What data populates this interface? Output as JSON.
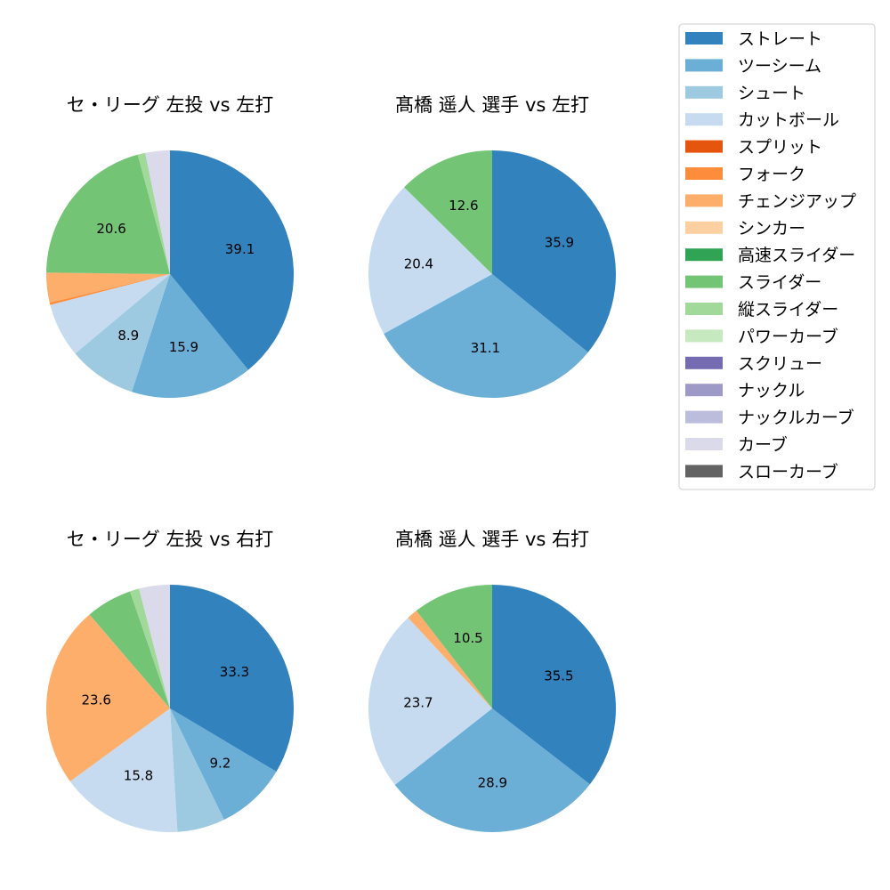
{
  "chart_data": {
    "legend": {
      "placement": "right",
      "items": [
        {
          "name": "ストレート",
          "color": "#3182bd"
        },
        {
          "name": "ツーシーム",
          "color": "#6baed6"
        },
        {
          "name": "シュート",
          "color": "#9ecae1"
        },
        {
          "name": "カットボール",
          "color": "#c6dbef"
        },
        {
          "name": "スプリット",
          "color": "#e6550d"
        },
        {
          "name": "フォーク",
          "color": "#fd8d3c"
        },
        {
          "name": "チェンジアップ",
          "color": "#fdae6b"
        },
        {
          "name": "シンカー",
          "color": "#fdd0a2"
        },
        {
          "name": "高速スライダー",
          "color": "#31a354"
        },
        {
          "name": "スライダー",
          "color": "#74c476"
        },
        {
          "name": "縦スライダー",
          "color": "#a1d99b"
        },
        {
          "name": "パワーカーブ",
          "color": "#c7e9c0"
        },
        {
          "name": "スクリュー",
          "color": "#756bb1"
        },
        {
          "name": "ナックル",
          "color": "#9e9ac8"
        },
        {
          "name": "ナックルカーブ",
          "color": "#bcbddc"
        },
        {
          "name": "カーブ",
          "color": "#dadaeb"
        },
        {
          "name": "スローカーブ",
          "color": "#636363"
        }
      ]
    },
    "charts": [
      {
        "type": "pie",
        "title": "セ・リーグ 左投 vs 左打",
        "slices": [
          {
            "category": "ストレート",
            "value": 39.1,
            "label": "39.1"
          },
          {
            "category": "ツーシーム",
            "value": 15.9,
            "label": "15.9"
          },
          {
            "category": "シュート",
            "value": 8.9,
            "label": "8.9"
          },
          {
            "category": "カットボール",
            "value": 7.1,
            "label": ""
          },
          {
            "category": "フォーク",
            "value": 0.3,
            "label": ""
          },
          {
            "category": "チェンジアップ",
            "value": 3.9,
            "label": ""
          },
          {
            "category": "スライダー",
            "value": 20.6,
            "label": "20.6"
          },
          {
            "category": "縦スライダー",
            "value": 1.0,
            "label": ""
          },
          {
            "category": "カーブ",
            "value": 3.2,
            "label": ""
          }
        ]
      },
      {
        "type": "pie",
        "title": "髙橋 遥人 選手 vs 左打",
        "slices": [
          {
            "category": "ストレート",
            "value": 35.9,
            "label": "35.9"
          },
          {
            "category": "ツーシーム",
            "value": 31.1,
            "label": "31.1"
          },
          {
            "category": "カットボール",
            "value": 20.4,
            "label": "20.4"
          },
          {
            "category": "スライダー",
            "value": 12.6,
            "label": "12.6"
          }
        ]
      },
      {
        "type": "pie",
        "title": "セ・リーグ 左投 vs 右打",
        "slices": [
          {
            "category": "ストレート",
            "value": 33.3,
            "label": "33.3"
          },
          {
            "category": "ツーシーム",
            "value": 9.2,
            "label": "9.2"
          },
          {
            "category": "シュート",
            "value": 6.2,
            "label": ""
          },
          {
            "category": "カットボール",
            "value": 15.8,
            "label": "15.8"
          },
          {
            "category": "チェンジアップ",
            "value": 23.6,
            "label": "23.6"
          },
          {
            "category": "スライダー",
            "value": 6.0,
            "label": ""
          },
          {
            "category": "縦スライダー",
            "value": 1.2,
            "label": ""
          },
          {
            "category": "カーブ",
            "value": 4.0,
            "label": ""
          }
        ]
      },
      {
        "type": "pie",
        "title": "髙橋 遥人 選手 vs 右打",
        "slices": [
          {
            "category": "ストレート",
            "value": 35.5,
            "label": "35.5"
          },
          {
            "category": "ツーシーム",
            "value": 28.9,
            "label": "28.9"
          },
          {
            "category": "カットボール",
            "value": 23.7,
            "label": "23.7"
          },
          {
            "category": "チェンジアップ",
            "value": 1.4,
            "label": ""
          },
          {
            "category": "スライダー",
            "value": 10.5,
            "label": "10.5"
          }
        ]
      }
    ]
  }
}
